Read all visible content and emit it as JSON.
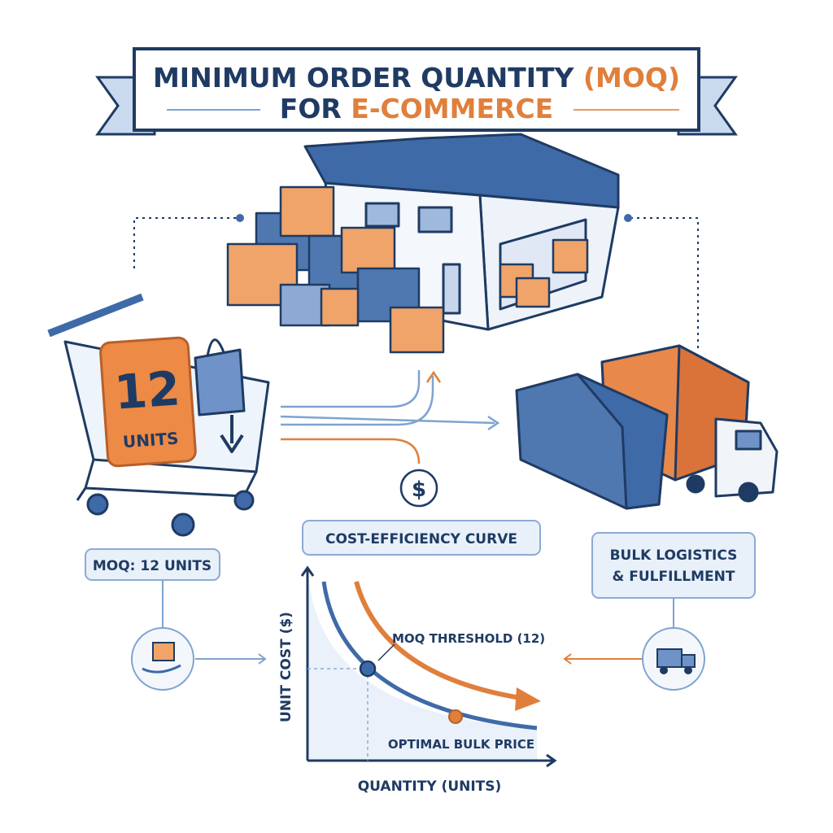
{
  "title": {
    "line1_main": "MINIMUM ORDER QUANTITY",
    "line1_accent": "(MOQ)",
    "line2_main": "FOR",
    "line2_accent": "E-COMMERCE"
  },
  "cart_badge": {
    "number": "12",
    "unit": "UNITS"
  },
  "cost_icon": "$",
  "labels": {
    "curve": "COST-EFFICIENCY CURVE",
    "moq": "MOQ: 12 UNITS",
    "logistics_line1": "BULK LOGISTICS",
    "logistics_line2": "& FULFILLMENT"
  },
  "graph": {
    "threshold": "MOQ THRESHOLD (12)",
    "optimal": "OPTIMAL BULK PRICE",
    "y_axis": "UNIT COST ($)",
    "x_axis": "QUANTITY (UNITS)"
  }
}
